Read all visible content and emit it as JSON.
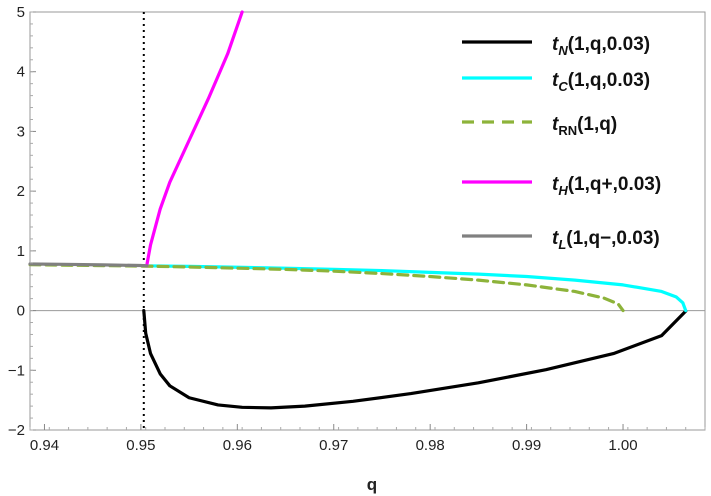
{
  "chart_data": {
    "type": "line",
    "title": "",
    "xlabel": "q",
    "ylabel": "",
    "xlim": [
      0.9385,
      1.0085
    ],
    "ylim": [
      -2,
      5
    ],
    "x_ticks": [
      0.94,
      0.95,
      0.96,
      0.97,
      0.98,
      0.99,
      1.0
    ],
    "x_tick_labels": [
      "0.94",
      "0.95",
      "0.96",
      "0.97",
      "0.98",
      "0.99",
      "1.00"
    ],
    "y_ticks": [
      -2,
      -1,
      0,
      1,
      2,
      3,
      4,
      5
    ],
    "y_tick_labels": [
      "−2",
      "−1",
      "0",
      "1",
      "2",
      "3",
      "4",
      "5"
    ],
    "grid": false,
    "legend_position": "top-right",
    "vertical_reference_line": {
      "x": 0.9503,
      "style": "dotted",
      "color": "#000000"
    },
    "horizontal_reference_line": {
      "y": 0,
      "color": "#999999"
    },
    "series": [
      {
        "name": "t_N(1,q,0.03)",
        "legend": {
          "main": "t",
          "sub": "N",
          "rest": "(1,q,0.03)",
          "sub_italic": true
        },
        "color": "#000000",
        "dash": "solid",
        "x": [
          0.9503,
          0.9505,
          0.951,
          0.952,
          0.953,
          0.955,
          0.958,
          0.9605,
          0.9635,
          0.967,
          0.972,
          0.978,
          0.985,
          0.992,
          0.999,
          1.004,
          1.0065
        ],
        "y": [
          0.0,
          -0.38,
          -0.72,
          -1.06,
          -1.26,
          -1.46,
          -1.58,
          -1.62,
          -1.63,
          -1.6,
          -1.52,
          -1.39,
          -1.21,
          -0.99,
          -0.72,
          -0.42,
          -0.01
        ]
      },
      {
        "name": "t_C(1,q,0.03)",
        "legend": {
          "main": "t",
          "sub": "C",
          "rest": "(1,q,0.03)",
          "sub_italic": true
        },
        "color": "#00ffff",
        "dash": "solid",
        "x": [
          0.9503,
          0.955,
          0.96,
          0.965,
          0.97,
          0.975,
          0.98,
          0.985,
          0.99,
          0.995,
          1.0,
          1.004,
          1.0055,
          1.0062,
          1.0065
        ],
        "y": [
          0.75,
          0.74,
          0.725,
          0.71,
          0.69,
          0.67,
          0.64,
          0.61,
          0.57,
          0.51,
          0.43,
          0.32,
          0.23,
          0.13,
          0.0
        ]
      },
      {
        "name": "t_RN(1,q)",
        "legend": {
          "main": "t",
          "sub": "RN",
          "rest": "(1,q)",
          "sub_italic": false
        },
        "color": "#8db33a",
        "dash": "dashed",
        "x": [
          0.9385,
          0.94,
          0.945,
          0.95,
          0.955,
          0.96,
          0.965,
          0.97,
          0.975,
          0.98,
          0.985,
          0.99,
          0.995,
          0.998,
          0.9995,
          1.0
        ],
        "y": [
          0.77,
          0.765,
          0.755,
          0.745,
          0.73,
          0.71,
          0.69,
          0.66,
          0.62,
          0.57,
          0.51,
          0.43,
          0.32,
          0.21,
          0.11,
          0.0
        ]
      },
      {
        "name": "t_H(1,q+,0.03)",
        "legend": {
          "main": "t",
          "sub": "H",
          "rest": "(1,q+,0.03)",
          "sub_italic": true
        },
        "color": "#ff00ff",
        "dash": "solid",
        "x": [
          0.9506,
          0.951,
          0.952,
          0.953,
          0.955,
          0.957,
          0.959,
          0.9605
        ],
        "y": [
          0.75,
          1.1,
          1.7,
          2.15,
          2.85,
          3.55,
          4.3,
          5.0
        ]
      },
      {
        "name": "t_L(1,q−,0.03)",
        "legend": {
          "main": "t",
          "sub": "L",
          "rest": "(1,q−,0.03)",
          "sub_italic": true
        },
        "color": "#808080",
        "dash": "solid",
        "x": [
          0.9385,
          0.942,
          0.946,
          0.95,
          0.9506
        ],
        "y": [
          0.78,
          0.775,
          0.765,
          0.755,
          0.75
        ]
      }
    ]
  }
}
